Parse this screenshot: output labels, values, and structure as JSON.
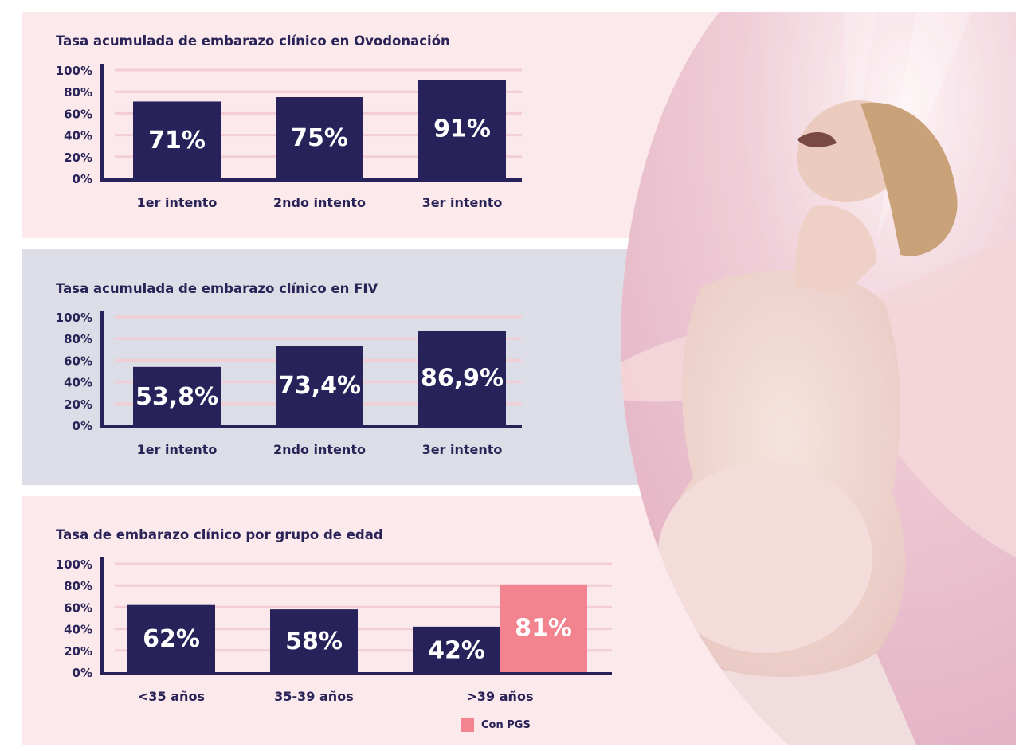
{
  "colors": {
    "bar": "#27235a",
    "pgs_bar": "#f2838f",
    "grid": "#f2cdd4",
    "axis": "#27235a",
    "text": "#2a2357",
    "value_text": "#ffffff"
  },
  "chart_data": [
    {
      "type": "bar",
      "title": "Tasa acumulada de embarazo clínico en Ovodonación",
      "categories": [
        "1er intento",
        "2ndo intento",
        "3er intento"
      ],
      "series": [
        {
          "values": [
            71,
            75,
            91
          ]
        }
      ],
      "value_labels": [
        "71%",
        "75%",
        "91%"
      ],
      "yticks": [
        "0%",
        "20%",
        "40%",
        "60%",
        "80%",
        "100%"
      ],
      "ylim": [
        0,
        100
      ],
      "grid": true
    },
    {
      "type": "bar",
      "title": "Tasa acumulada de embarazo clínico en FIV",
      "categories": [
        "1er intento",
        "2ndo intento",
        "3er intento"
      ],
      "series": [
        {
          "values": [
            53.8,
            73.4,
            86.9
          ]
        }
      ],
      "value_labels": [
        "53,8%",
        "73,4%",
        "86,9%"
      ],
      "yticks": [
        "0%",
        "20%",
        "40%",
        "60%",
        "80%",
        "100%"
      ],
      "ylim": [
        0,
        100
      ],
      "grid": true
    },
    {
      "type": "bar",
      "title": "Tasa de embarazo clínico por grupo de edad",
      "categories": [
        "<35 años",
        "35-39 años",
        ">39 años"
      ],
      "series": [
        {
          "values": [
            62,
            58,
            42
          ]
        },
        {
          "name": "Con PGS",
          "values": [
            null,
            null,
            81
          ]
        }
      ],
      "value_labels": [
        [
          "62%",
          "58%",
          "42%"
        ],
        [
          null,
          null,
          "81%"
        ]
      ],
      "yticks": [
        "0%",
        "20%",
        "40%",
        "60%",
        "80%",
        "100%"
      ],
      "ylim": [
        0,
        100
      ],
      "grid": true,
      "legend": {
        "position": "bottom",
        "label": "Con PGS"
      }
    }
  ]
}
